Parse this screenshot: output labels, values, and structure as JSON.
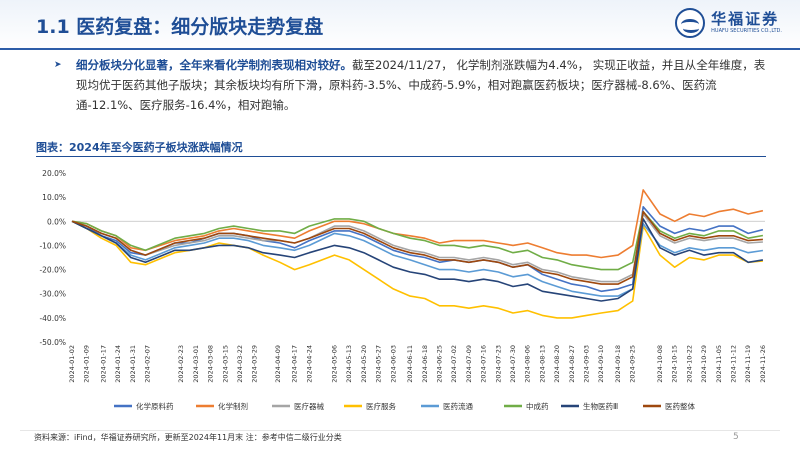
{
  "header": {
    "title": "1.1 医药复盘：细分版块走势复盘",
    "logo_cn": "华福证券",
    "logo_en": "HUAFU SECURITIES CO.,LTD."
  },
  "summary": {
    "highlight": "细分板块分化显著，全年来看化学制剂表现相对较好。",
    "text": "截至2024/11/27， 化学制剂涨跌幅为4.4%， 实现正收益，并且从全年维度，表现均优于医药其他子版块；其余板块均有所下滑，原料药-3.5%、中成药-5.9%，相对跑赢医药板块；医疗器械-8.6%、医药流通-12.1%、医疗服务-16.4%，相对跑输。"
  },
  "chart_title": "图表：2024年至今医药子板块涨跌幅情况",
  "footer": {
    "source": "资料来源：iFind，华福证券研究所，更新至2024年11月末 注：参考中信二级行业分类",
    "page": "5"
  },
  "colors": {
    "accent": "#1f4e96",
    "series": [
      "#4472c4",
      "#ed7d31",
      "#a5a5a5",
      "#ffc000",
      "#5b9bd5",
      "#70ad47",
      "#264478",
      "#9e480e"
    ]
  },
  "chart_data": {
    "type": "line",
    "ylim": [
      -50,
      20
    ],
    "yticks": [
      "20.0%",
      "10.0%",
      "0.0%",
      "-10.0%",
      "-20.0%",
      "-30.0%",
      "-40.0%",
      "-50.0%"
    ],
    "x_dates": [
      "2024-01-02",
      "2024-01-09",
      "2024-01-16",
      "2024-01-23",
      "2024-01-30",
      "2024-02-06",
      "2024-02-20",
      "2024-02-27",
      "2024-03-05",
      "2024-03-12",
      "2024-03-19",
      "2024-03-26",
      "2024-04-02",
      "2024-04-10",
      "2024-04-17",
      "2024-04-24",
      "2024-05-06",
      "2024-05-13",
      "2024-05-20",
      "2024-05-27",
      "2024-06-03",
      "2024-06-11",
      "2024-06-18",
      "2024-06-25",
      "2024-07-02",
      "2024-07-09",
      "2024-07-16",
      "2024-07-23",
      "2024-07-30",
      "2024-08-06",
      "2024-08-13",
      "2024-08-20",
      "2024-08-27",
      "2024-09-03",
      "2024-09-10",
      "2024-09-18",
      "2024-09-25",
      "2024-09-30",
      "2024-10-08",
      "2024-10-15",
      "2024-10-22",
      "2024-10-29",
      "2024-11-05",
      "2024-11-12",
      "2024-11-19",
      "2024-11-26"
    ],
    "xticks": [
      "2024-01-02",
      "2024-01-09",
      "2024-01-17",
      "2024-01-24",
      "2024-01-31",
      "2024-02-07",
      "2024-02-23",
      "2024-03-01",
      "2024-03-08",
      "2024-03-15",
      "2024-03-22",
      "2024-03-29",
      "2024-04-09",
      "2024-04-17",
      "2024-04-24",
      "2024-05-06",
      "2024-05-13",
      "2024-05-20",
      "2024-05-27",
      "2024-06-03",
      "2024-06-11",
      "2024-06-18",
      "2024-06-25",
      "2024-07-02",
      "2024-07-09",
      "2024-07-16",
      "2024-07-23",
      "2024-07-30",
      "2024-08-06",
      "2024-08-13",
      "2024-08-20",
      "2024-08-27",
      "2024-09-03",
      "2024-09-10",
      "2024-09-18",
      "2024-09-25",
      "2024-10-08",
      "2024-10-15",
      "2024-10-22",
      "2024-10-29",
      "2024-11-05",
      "2024-11-12",
      "2024-11-19",
      "2024-11-26"
    ],
    "series": [
      {
        "name": "化学原料药",
        "values": [
          0,
          -2,
          -6,
          -8,
          -13,
          -14,
          -9,
          -9,
          -7,
          -5,
          -5,
          -6,
          -8,
          -9,
          -11,
          -8,
          -4,
          -4,
          -6,
          -9,
          -12,
          -14,
          -15,
          -17,
          -16,
          -17,
          -16,
          -17,
          -19,
          -18,
          -22,
          -24,
          -26,
          -27,
          -29,
          -28,
          -26,
          6,
          -2,
          -5,
          -3,
          -4,
          -2,
          -2,
          -5,
          -3.5
        ]
      },
      {
        "name": "化学制剂",
        "values": [
          0,
          -1,
          -4,
          -6,
          -11,
          -12,
          -8,
          -7,
          -6,
          -4,
          -3,
          -4,
          -5,
          -6,
          -7,
          -4,
          0,
          0,
          -1,
          -3,
          -5,
          -6,
          -7,
          -9,
          -8,
          -8,
          -8,
          -9,
          -10,
          -9,
          -11,
          -13,
          -14,
          -14,
          -15,
          -14,
          -10,
          13,
          3,
          0,
          3,
          2,
          4,
          5,
          3,
          4.4
        ]
      },
      {
        "name": "医疗器械",
        "values": [
          0,
          -2,
          -5,
          -7,
          -12,
          -14,
          -10,
          -9,
          -8,
          -6,
          -6,
          -7,
          -8,
          -8,
          -9,
          -7,
          -2,
          -2,
          -4,
          -7,
          -10,
          -12,
          -13,
          -15,
          -15,
          -16,
          -15,
          -16,
          -18,
          -17,
          -20,
          -21,
          -23,
          -24,
          -25,
          -25,
          -22,
          3,
          -6,
          -9,
          -7,
          -8,
          -7,
          -7,
          -9,
          -8.6
        ]
      },
      {
        "name": "医疗服务",
        "values": [
          0,
          -3,
          -7,
          -10,
          -17,
          -18,
          -13,
          -12,
          -11,
          -9,
          -10,
          -11,
          -14,
          -17,
          -20,
          -18,
          -14,
          -16,
          -20,
          -24,
          -28,
          -31,
          -32,
          -35,
          -35,
          -36,
          -35,
          -36,
          -38,
          -37,
          -39,
          -40,
          -40,
          -39,
          -38,
          -37,
          -33,
          -2,
          -14,
          -19,
          -15,
          -16,
          -14,
          -14,
          -17,
          -16.4
        ]
      },
      {
        "name": "医药流通",
        "values": [
          0,
          -3,
          -6,
          -9,
          -14,
          -16,
          -11,
          -10,
          -9,
          -7,
          -7,
          -8,
          -10,
          -11,
          -12,
          -10,
          -5,
          -6,
          -8,
          -11,
          -14,
          -16,
          -18,
          -20,
          -20,
          -21,
          -20,
          -21,
          -23,
          -22,
          -25,
          -27,
          -29,
          -30,
          -31,
          -31,
          -28,
          -1,
          -10,
          -13,
          -11,
          -12,
          -11,
          -11,
          -13,
          -12.1
        ]
      },
      {
        "name": "中成药",
        "values": [
          0,
          -1,
          -4,
          -6,
          -10,
          -12,
          -7,
          -6,
          -5,
          -3,
          -2,
          -3,
          -4,
          -4,
          -5,
          -2,
          1,
          1,
          0,
          -3,
          -5,
          -7,
          -8,
          -10,
          -10,
          -11,
          -10,
          -11,
          -13,
          -12,
          -15,
          -16,
          -18,
          -19,
          -20,
          -20,
          -17,
          4,
          -4,
          -7,
          -5,
          -6,
          -4,
          -4,
          -7,
          -5.9
        ]
      },
      {
        "name": "生物医药Ⅲ",
        "values": [
          0,
          -3,
          -6,
          -9,
          -15,
          -17,
          -12,
          -12,
          -11,
          -10,
          -10,
          -11,
          -13,
          -14,
          -15,
          -13,
          -10,
          -11,
          -13,
          -16,
          -19,
          -21,
          -22,
          -24,
          -24,
          -25,
          -24,
          -25,
          -27,
          -26,
          -29,
          -30,
          -31,
          -32,
          -33,
          -32,
          -28,
          1,
          -11,
          -14,
          -12,
          -14,
          -13,
          -13,
          -17,
          -16
        ]
      },
      {
        "name": "医药整体",
        "values": [
          0,
          -2,
          -5,
          -7,
          -12,
          -14,
          -9,
          -8,
          -7,
          -5,
          -5,
          -6,
          -7,
          -8,
          -9,
          -7,
          -3,
          -3,
          -5,
          -8,
          -11,
          -13,
          -14,
          -16,
          -16,
          -17,
          -16,
          -17,
          -19,
          -18,
          -21,
          -22,
          -24,
          -25,
          -26,
          -26,
          -23,
          4,
          -5,
          -8,
          -6,
          -7,
          -6,
          -6,
          -8,
          -7.5
        ]
      }
    ]
  }
}
